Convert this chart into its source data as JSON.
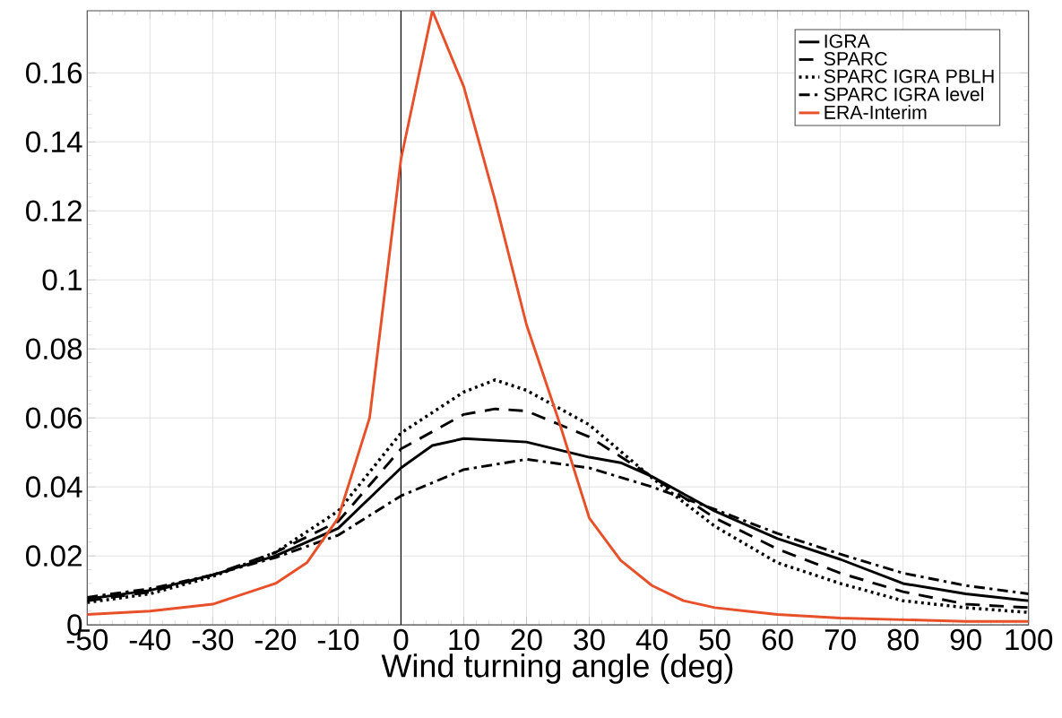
{
  "chart_data": {
    "type": "line",
    "xlabel": "Wind turning angle (deg)",
    "xlim": [
      -50,
      100
    ],
    "ylim": [
      0,
      0.178
    ],
    "xticks": [
      -50,
      -40,
      -30,
      -20,
      -10,
      0,
      10,
      20,
      30,
      40,
      50,
      60,
      70,
      80,
      90,
      100
    ],
    "yticks": [
      0,
      0.02,
      0.04,
      0.06,
      0.08,
      0.1,
      0.12,
      0.14,
      0.16
    ],
    "grid": true,
    "legend": "top right",
    "marker": "none",
    "ref_lines": [
      {
        "axis": "x",
        "value": 0,
        "color": "#000000",
        "line_style": "solid"
      }
    ],
    "series": [
      {
        "name": "IGRA",
        "color": "#000000",
        "line_style": "solid",
        "x": [
          -50,
          -40,
          -30,
          -20,
          -10,
          0,
          5,
          10,
          20,
          30,
          35,
          40,
          50,
          60,
          70,
          80,
          90,
          100
        ],
        "values": [
          0.0075,
          0.01,
          0.0145,
          0.02,
          0.028,
          0.0455,
          0.052,
          0.054,
          0.053,
          0.0486,
          0.047,
          0.043,
          0.033,
          0.025,
          0.019,
          0.012,
          0.009,
          0.007
        ]
      },
      {
        "name": "SPARC",
        "color": "#000000",
        "line_style": "dashed",
        "x": [
          -50,
          -40,
          -30,
          -20,
          -10,
          0,
          10,
          15,
          20,
          30,
          40,
          50,
          60,
          70,
          80,
          90,
          100
        ],
        "values": [
          0.007,
          0.0095,
          0.0145,
          0.021,
          0.03,
          0.051,
          0.061,
          0.0626,
          0.062,
          0.0545,
          0.043,
          0.031,
          0.022,
          0.015,
          0.0096,
          0.006,
          0.005
        ]
      },
      {
        "name": "SPARC IGRA PBLH",
        "color": "#000000",
        "line_style": "dotted",
        "x": [
          -50,
          -40,
          -30,
          -20,
          -10,
          0,
          10,
          15,
          20,
          30,
          40,
          50,
          60,
          70,
          80,
          90,
          100
        ],
        "values": [
          0.0065,
          0.009,
          0.014,
          0.021,
          0.033,
          0.0556,
          0.0675,
          0.071,
          0.068,
          0.058,
          0.0426,
          0.0286,
          0.018,
          0.012,
          0.007,
          0.005,
          0.0036
        ]
      },
      {
        "name": "SPARC IGRA level",
        "color": "#000000",
        "line_style": "dashdot",
        "x": [
          -50,
          -40,
          -30,
          -20,
          -10,
          0,
          10,
          20,
          30,
          40,
          50,
          60,
          70,
          80,
          90,
          100
        ],
        "values": [
          0.008,
          0.0105,
          0.0145,
          0.0195,
          0.026,
          0.0374,
          0.045,
          0.048,
          0.0455,
          0.04,
          0.0335,
          0.0265,
          0.0205,
          0.015,
          0.0114,
          0.009
        ]
      },
      {
        "name": "ERA-Interim",
        "color": "#e8502a",
        "line_style": "solid",
        "x": [
          -50,
          -40,
          -30,
          -20,
          -15,
          -10,
          -5,
          0,
          5,
          10,
          15,
          20,
          25,
          30,
          35,
          40,
          45,
          50,
          55,
          60,
          70,
          80,
          90,
          100
        ],
        "values": [
          0.003,
          0.004,
          0.006,
          0.012,
          0.018,
          0.031,
          0.06,
          0.135,
          0.178,
          0.156,
          0.123,
          0.087,
          0.06,
          0.031,
          0.0187,
          0.0114,
          0.007,
          0.005,
          0.004,
          0.003,
          0.002,
          0.0015,
          0.001,
          0.001
        ]
      }
    ]
  }
}
